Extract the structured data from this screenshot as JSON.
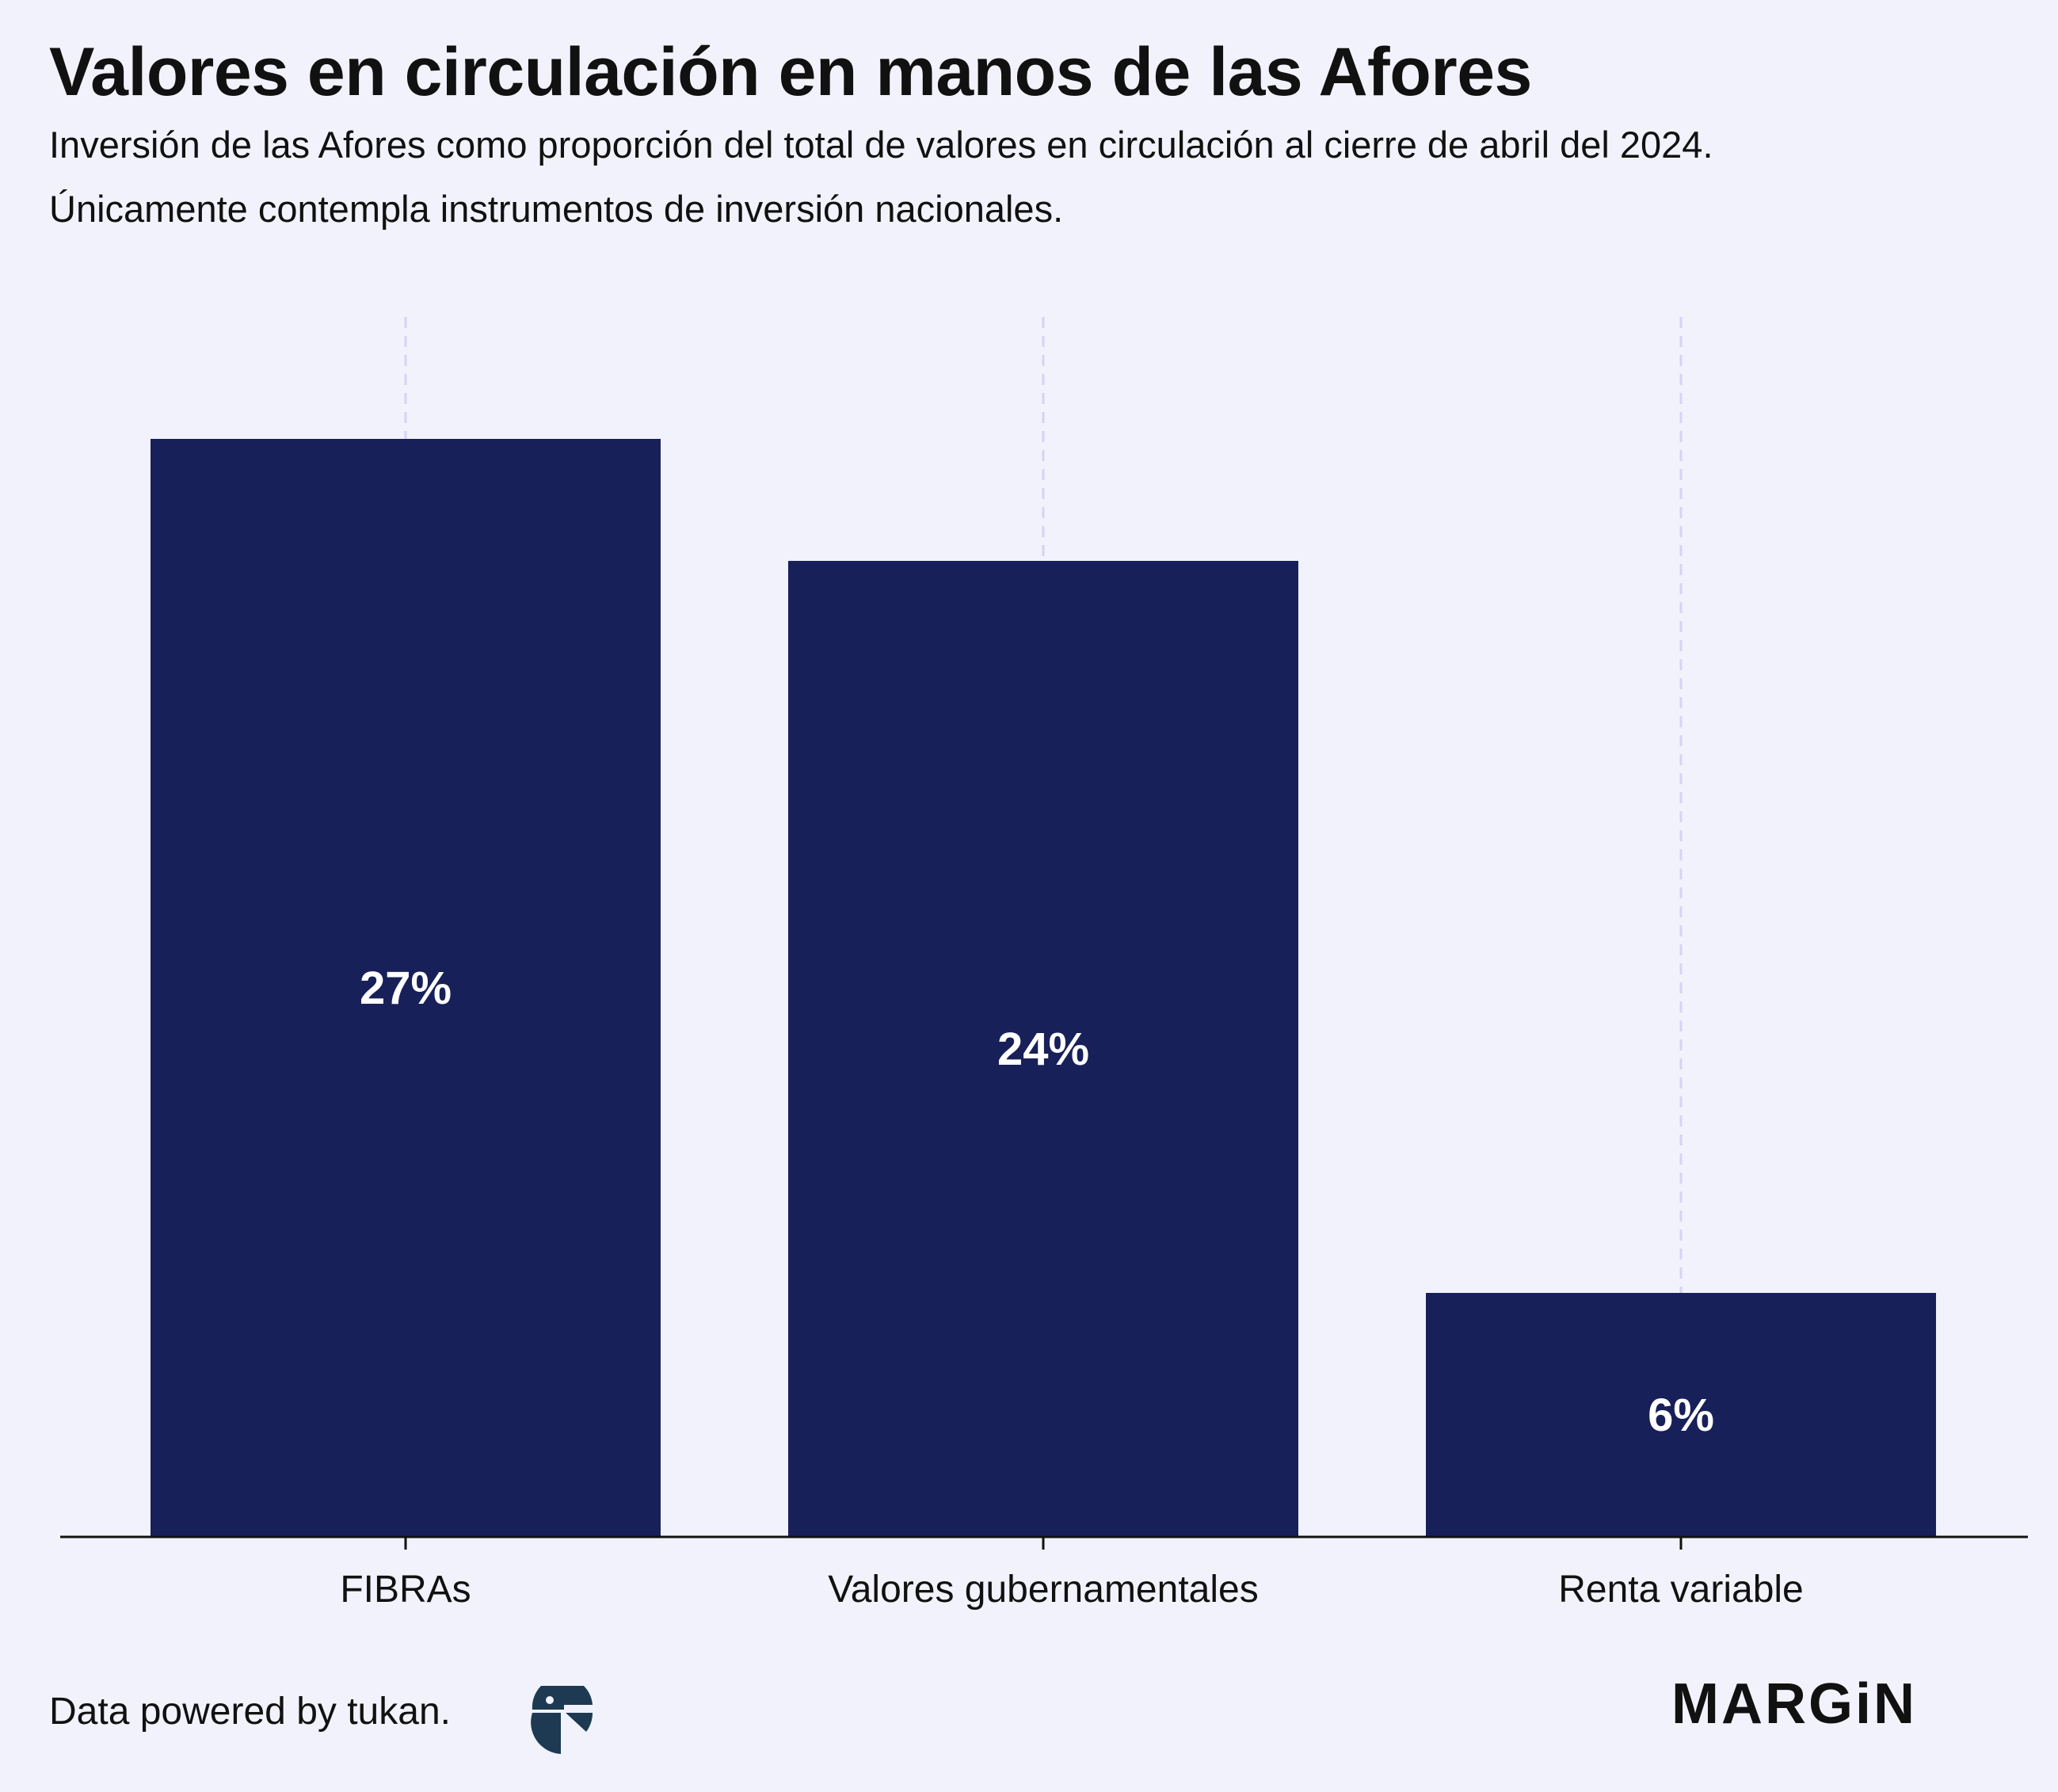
{
  "chart_data": {
    "type": "bar",
    "title": "Valores en circulación en manos de las Afores",
    "subtitle_lines": [
      "Inversión de las Afores como proporción del total de valores en circulación al cierre de abril del 2024.",
      "Únicamente contempla instrumentos de inversión nacionales."
    ],
    "categories": [
      "FIBRAs",
      "Valores gubernamentales",
      "Renta variable"
    ],
    "values": [
      27,
      24,
      6
    ],
    "value_labels": [
      "27%",
      "24%",
      "6%"
    ],
    "xlabel": "",
    "ylabel": "",
    "ylim": [
      0,
      30
    ],
    "bar_color": "#18205a",
    "label_color": "#ffffff",
    "gridline_color": "#d4d4f4",
    "grid": "vertical dashed",
    "legend": "none"
  },
  "footer": {
    "credit": "Data powered by tukan.",
    "brand": "MARGiN"
  },
  "icons": {
    "source_logo": "tukan-logo",
    "brand_logo": "margin-logo"
  }
}
